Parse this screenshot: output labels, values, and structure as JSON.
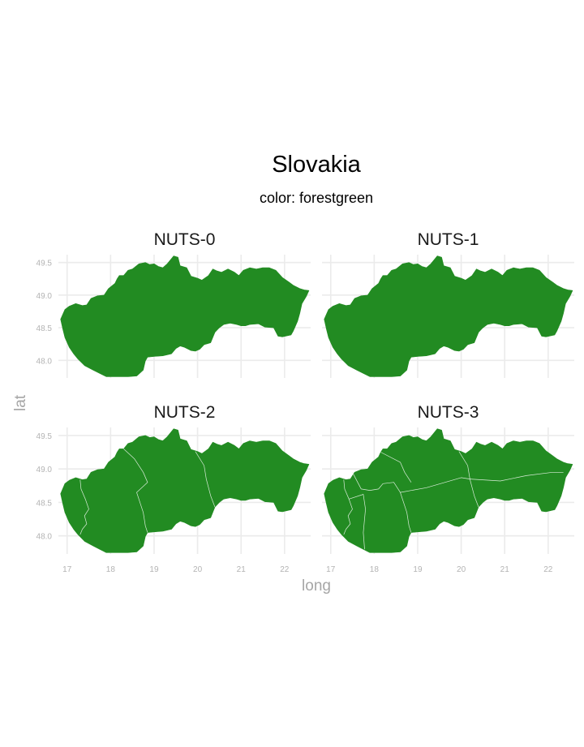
{
  "title": "Slovakia",
  "subtitle": "color: forestgreen",
  "colors": {
    "fill": "#228b22",
    "grid": "#ebebeb",
    "tick_text": "#b3b3b3",
    "axis_text": "#a6a6a6"
  },
  "axes": {
    "xlabel": "long",
    "ylabel": "lat",
    "xlim": [
      16.8,
      22.6
    ],
    "ylim": [
      47.73,
      49.62
    ],
    "xticks": [
      17,
      18,
      19,
      20,
      21,
      22
    ],
    "xtick_labels": [
      "17",
      "18",
      "19",
      "20",
      "21",
      "22"
    ],
    "yticks": [
      48.0,
      48.5,
      49.0,
      49.5
    ],
    "ytick_labels": [
      "48.0",
      "48.5",
      "49.0",
      "49.5"
    ]
  },
  "panels": [
    {
      "label": "NUTS-0",
      "region_count": 1
    },
    {
      "label": "NUTS-1",
      "region_count": 1
    },
    {
      "label": "NUTS-2",
      "region_count": 4
    },
    {
      "label": "NUTS-3",
      "region_count": 8
    }
  ],
  "outline": [
    [
      16.85,
      48.63
    ],
    [
      16.95,
      48.78
    ],
    [
      17.05,
      48.83
    ],
    [
      17.2,
      48.87
    ],
    [
      17.35,
      48.84
    ],
    [
      17.45,
      48.85
    ],
    [
      17.55,
      48.95
    ],
    [
      17.7,
      48.99
    ],
    [
      17.85,
      49.0
    ],
    [
      17.95,
      49.1
    ],
    [
      18.1,
      49.18
    ],
    [
      18.15,
      49.25
    ],
    [
      18.2,
      49.3
    ],
    [
      18.3,
      49.3
    ],
    [
      18.4,
      49.38
    ],
    [
      18.5,
      49.4
    ],
    [
      18.65,
      49.48
    ],
    [
      18.8,
      49.5
    ],
    [
      18.9,
      49.47
    ],
    [
      19.0,
      49.48
    ],
    [
      19.1,
      49.44
    ],
    [
      19.2,
      49.42
    ],
    [
      19.3,
      49.48
    ],
    [
      19.45,
      49.6
    ],
    [
      19.55,
      49.58
    ],
    [
      19.6,
      49.45
    ],
    [
      19.75,
      49.42
    ],
    [
      19.85,
      49.29
    ],
    [
      20.0,
      49.26
    ],
    [
      20.1,
      49.23
    ],
    [
      20.25,
      49.3
    ],
    [
      20.35,
      49.4
    ],
    [
      20.45,
      49.37
    ],
    [
      20.55,
      49.35
    ],
    [
      20.7,
      49.4
    ],
    [
      20.85,
      49.35
    ],
    [
      20.95,
      49.3
    ],
    [
      21.05,
      49.38
    ],
    [
      21.2,
      49.42
    ],
    [
      21.35,
      49.4
    ],
    [
      21.5,
      49.42
    ],
    [
      21.65,
      49.42
    ],
    [
      21.8,
      49.38
    ],
    [
      21.95,
      49.27
    ],
    [
      22.1,
      49.2
    ],
    [
      22.2,
      49.15
    ],
    [
      22.35,
      49.1
    ],
    [
      22.45,
      49.08
    ],
    [
      22.56,
      49.07
    ],
    [
      22.5,
      48.98
    ],
    [
      22.4,
      48.87
    ],
    [
      22.35,
      48.72
    ],
    [
      22.3,
      48.6
    ],
    [
      22.2,
      48.45
    ],
    [
      22.15,
      48.39
    ],
    [
      21.95,
      48.36
    ],
    [
      21.85,
      48.37
    ],
    [
      21.75,
      48.5
    ],
    [
      21.55,
      48.51
    ],
    [
      21.4,
      48.56
    ],
    [
      21.2,
      48.55
    ],
    [
      21.1,
      48.53
    ],
    [
      21.0,
      48.53
    ],
    [
      20.9,
      48.55
    ],
    [
      20.75,
      48.57
    ],
    [
      20.6,
      48.55
    ],
    [
      20.5,
      48.5
    ],
    [
      20.4,
      48.43
    ],
    [
      20.3,
      48.27
    ],
    [
      20.15,
      48.24
    ],
    [
      20.05,
      48.17
    ],
    [
      19.95,
      48.14
    ],
    [
      19.85,
      48.15
    ],
    [
      19.7,
      48.2
    ],
    [
      19.6,
      48.22
    ],
    [
      19.5,
      48.18
    ],
    [
      19.4,
      48.1
    ],
    [
      19.2,
      48.07
    ],
    [
      19.0,
      48.06
    ],
    [
      18.85,
      48.05
    ],
    [
      18.8,
      47.99
    ],
    [
      18.75,
      47.85
    ],
    [
      18.6,
      47.76
    ],
    [
      18.4,
      47.75
    ],
    [
      18.15,
      47.75
    ],
    [
      17.9,
      47.75
    ],
    [
      17.75,
      47.8
    ],
    [
      17.6,
      47.85
    ],
    [
      17.4,
      47.92
    ],
    [
      17.25,
      48.02
    ],
    [
      17.15,
      48.1
    ],
    [
      17.05,
      48.2
    ],
    [
      16.95,
      48.35
    ],
    [
      16.9,
      48.48
    ]
  ],
  "nuts2_borders": [
    [
      [
        17.3,
        48.84
      ],
      [
        17.32,
        48.7
      ],
      [
        17.42,
        48.55
      ],
      [
        17.5,
        48.4
      ],
      [
        17.4,
        48.3
      ],
      [
        17.45,
        48.18
      ],
      [
        17.35,
        48.1
      ],
      [
        17.3,
        48.02
      ]
    ],
    [
      [
        18.3,
        49.3
      ],
      [
        18.55,
        49.15
      ],
      [
        18.75,
        48.95
      ],
      [
        18.85,
        48.8
      ],
      [
        18.6,
        48.65
      ],
      [
        18.75,
        48.35
      ],
      [
        18.8,
        48.15
      ],
      [
        18.85,
        48.05
      ]
    ],
    [
      [
        19.95,
        49.26
      ],
      [
        20.15,
        49.05
      ],
      [
        20.2,
        48.85
      ],
      [
        20.3,
        48.6
      ],
      [
        20.4,
        48.43
      ]
    ]
  ],
  "nuts3_borders": [
    [
      [
        17.3,
        48.84
      ],
      [
        17.32,
        48.7
      ],
      [
        17.42,
        48.55
      ],
      [
        17.5,
        48.4
      ],
      [
        17.4,
        48.3
      ],
      [
        17.45,
        48.18
      ],
      [
        17.35,
        48.1
      ],
      [
        17.3,
        48.02
      ]
    ],
    [
      [
        17.42,
        48.55
      ],
      [
        17.75,
        48.62
      ],
      [
        17.8,
        48.4
      ],
      [
        17.75,
        48.05
      ],
      [
        17.78,
        47.8
      ]
    ],
    [
      [
        17.5,
        48.95
      ],
      [
        17.7,
        48.7
      ],
      [
        17.9,
        48.68
      ],
      [
        18.1,
        48.7
      ],
      [
        18.2,
        48.78
      ],
      [
        18.45,
        48.8
      ],
      [
        18.6,
        48.65
      ],
      [
        18.75,
        48.35
      ],
      [
        18.8,
        48.15
      ],
      [
        18.85,
        48.05
      ]
    ],
    [
      [
        18.15,
        49.25
      ],
      [
        18.6,
        49.1
      ],
      [
        18.7,
        48.95
      ],
      [
        18.85,
        48.8
      ]
    ],
    [
      [
        18.6,
        48.65
      ],
      [
        19.2,
        48.72
      ],
      [
        20.0,
        48.87
      ],
      [
        20.2,
        48.85
      ]
    ],
    [
      [
        19.95,
        49.26
      ],
      [
        20.15,
        49.05
      ],
      [
        20.2,
        48.85
      ],
      [
        20.3,
        48.6
      ],
      [
        20.4,
        48.43
      ]
    ],
    [
      [
        20.2,
        48.85
      ],
      [
        20.9,
        48.82
      ],
      [
        21.5,
        48.9
      ],
      [
        22.1,
        48.95
      ],
      [
        22.35,
        48.95
      ]
    ]
  ]
}
